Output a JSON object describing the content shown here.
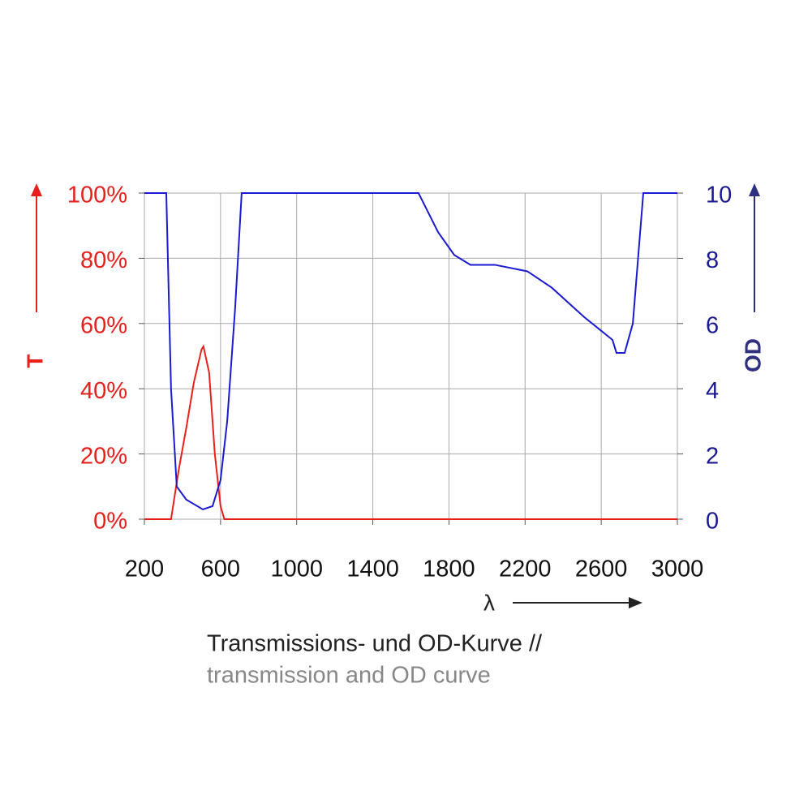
{
  "chart_data": {
    "type": "line",
    "xlabel": "λ",
    "caption": [
      "Transmissions- und OD-Kurve //",
      "transmission and OD curve"
    ],
    "xlim": [
      200,
      3000
    ],
    "xticks": [
      200,
      600,
      1000,
      1400,
      1800,
      2200,
      2600,
      3000
    ],
    "ylim": [
      0,
      100
    ],
    "yticks": [
      {
        "value": 0,
        "label": "0%"
      },
      {
        "value": 20,
        "label": "20%"
      },
      {
        "value": 40,
        "label": "40%"
      },
      {
        "value": 60,
        "label": "60%"
      },
      {
        "value": 80,
        "label": "80%"
      },
      {
        "value": 100,
        "label": "100%"
      }
    ],
    "y2lim": [
      0,
      10
    ],
    "y2ticks": [
      0,
      2,
      4,
      6,
      8,
      10
    ],
    "grid": true,
    "series": [
      {
        "name": "T",
        "color": "#e8201c",
        "axis": "y",
        "x": [
          200,
          340,
          380,
          420,
          460,
          500,
          510,
          540,
          570,
          600,
          620,
          3000
        ],
        "values": [
          0,
          0,
          15,
          28,
          42,
          52,
          53,
          45,
          20,
          4,
          0,
          0
        ]
      },
      {
        "name": "OD",
        "color": "#1a1ad0",
        "axis": "y2",
        "x": [
          200,
          315,
          340,
          370,
          420,
          507,
          558,
          600,
          635,
          677,
          711,
          1640,
          1743,
          1828,
          1913,
          2041,
          2212,
          2340,
          2510,
          2595,
          2659,
          2680,
          2723,
          2766,
          2821,
          3000
        ],
        "values": [
          10,
          10,
          4,
          1,
          0.6,
          0.3,
          0.4,
          1.2,
          3,
          6.5,
          10,
          10,
          8.8,
          8.1,
          7.8,
          7.8,
          7.6,
          7.1,
          6.2,
          5.8,
          5.5,
          5.1,
          5.1,
          6,
          10,
          10
        ]
      }
    ]
  }
}
